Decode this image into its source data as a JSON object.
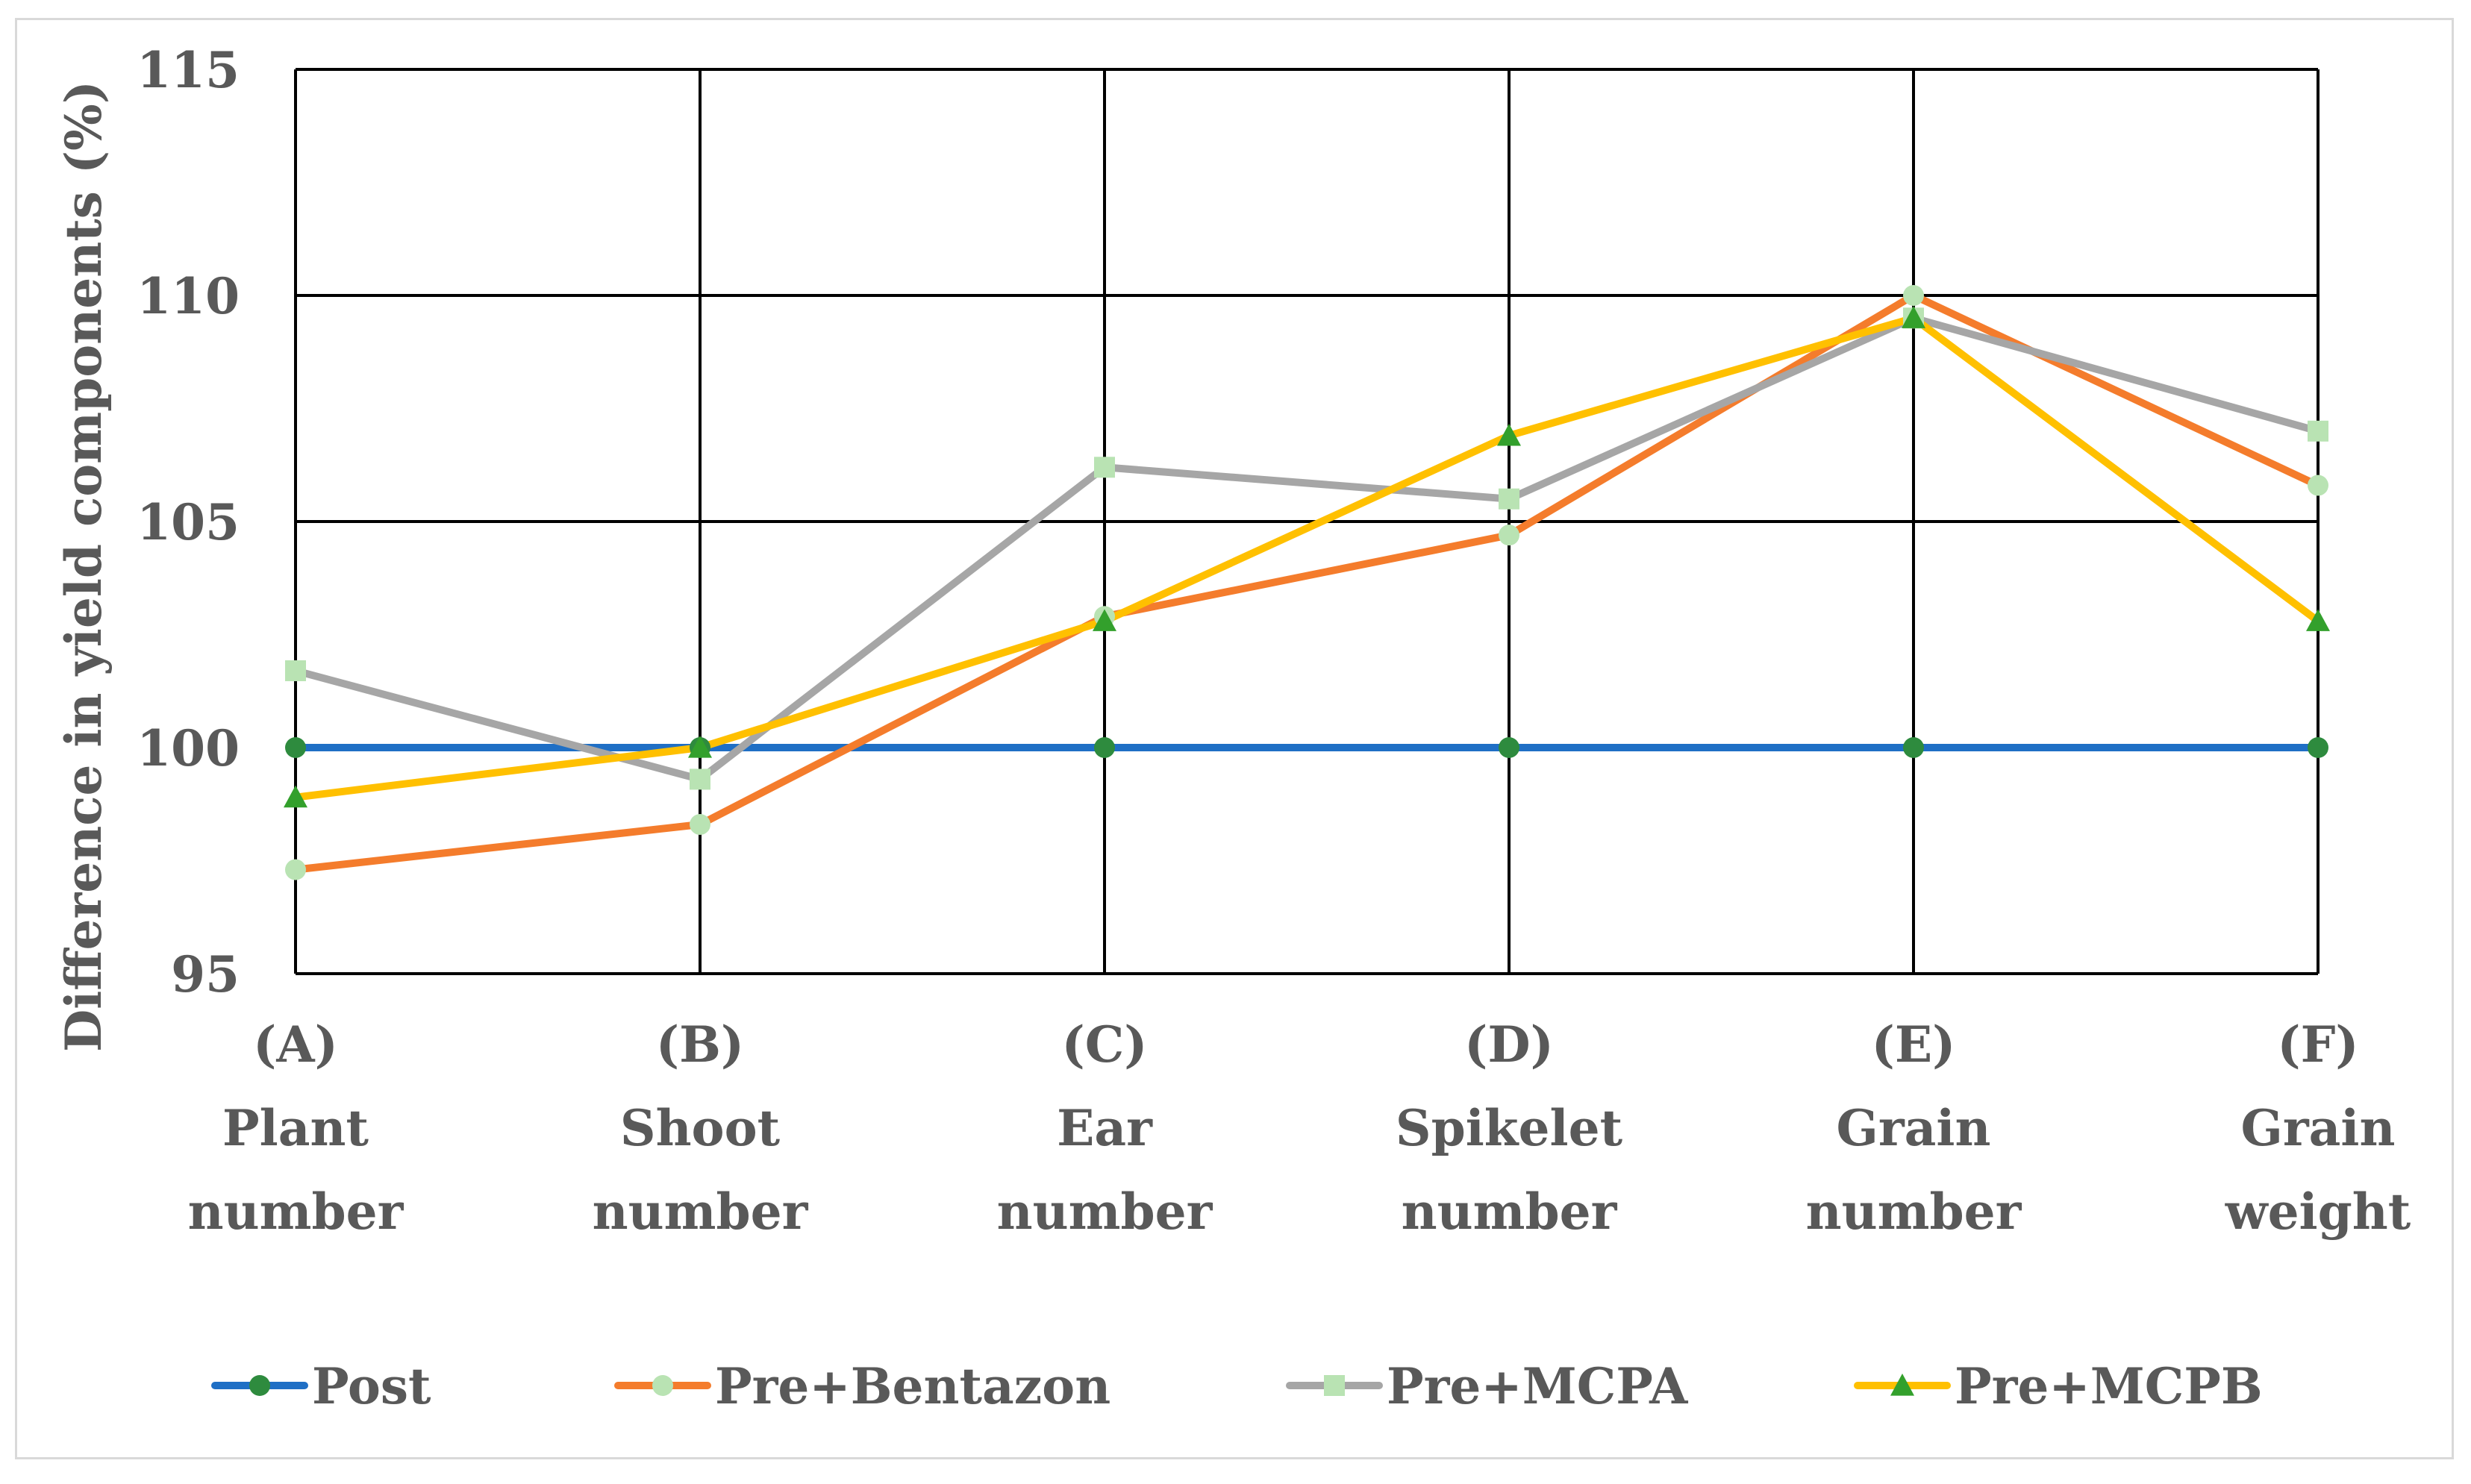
{
  "chart_data": {
    "type": "line",
    "title": "",
    "xlabel": "",
    "ylabel": "Difference in yield components (%)",
    "ylim": [
      95,
      115
    ],
    "yticks": [
      95,
      100,
      105,
      110,
      115
    ],
    "grid": true,
    "legend_position": "bottom",
    "categories": [
      {
        "code": "(A)",
        "line1": "Plant",
        "line2": "number"
      },
      {
        "code": "(B)",
        "line1": "Shoot",
        "line2": "number"
      },
      {
        "code": "(C)",
        "line1": "Ear",
        "line2": "number"
      },
      {
        "code": "(D)",
        "line1": "Spikelet",
        "line2": "number"
      },
      {
        "code": "(E)",
        "line1": "Grain",
        "line2": "number"
      },
      {
        "code": "(F)",
        "line1": "Grain",
        "line2": "weight"
      }
    ],
    "series": [
      {
        "name": "Post",
        "values": [
          100,
          100,
          100,
          100,
          100,
          100
        ],
        "line_color": "#1f6fc5",
        "marker": "circle",
        "marker_color": "#2e8b3e"
      },
      {
        "name": "Pre+Bentazon",
        "values": [
          97.3,
          98.3,
          102.9,
          104.7,
          110.0,
          105.8
        ],
        "line_color": "#f47c2c",
        "marker": "circle",
        "marker_color": "#b9e3b3"
      },
      {
        "name": "Pre+MCPA",
        "values": [
          101.7,
          99.3,
          106.2,
          105.5,
          109.5,
          107.0
        ],
        "line_color": "#a6a6a6",
        "marker": "square",
        "marker_color": "#b9e3b3"
      },
      {
        "name": "Pre+MCPB",
        "values": [
          98.9,
          100.0,
          102.8,
          106.9,
          109.5,
          102.8
        ],
        "line_color": "#ffc000",
        "marker": "triangle",
        "marker_color": "#33a02c"
      }
    ]
  }
}
